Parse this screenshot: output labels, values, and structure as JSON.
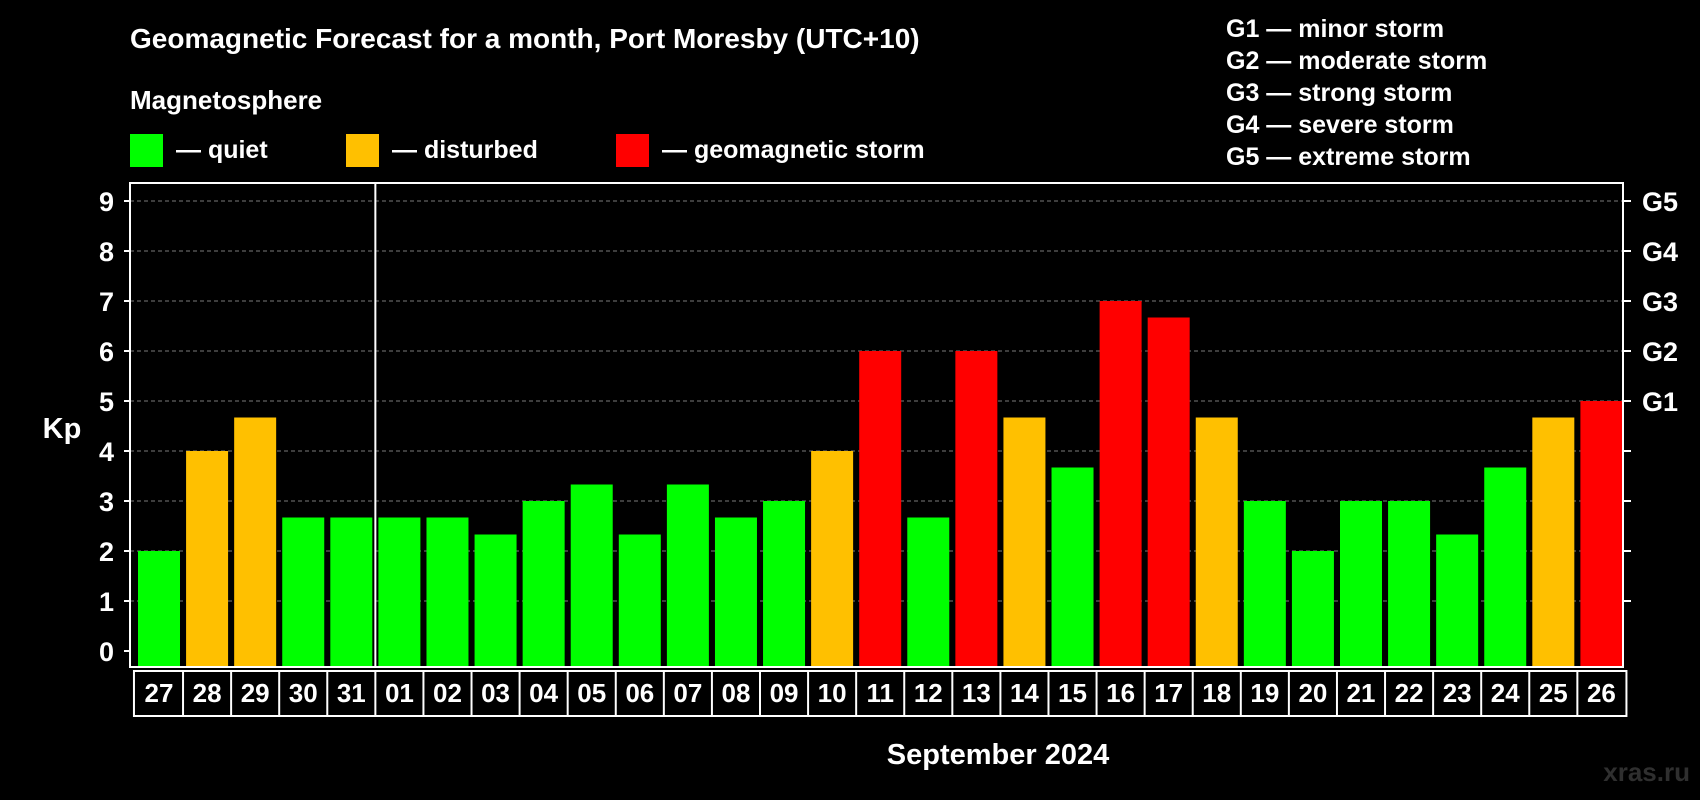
{
  "header": {
    "title": "Geomagnetic Forecast for a month, Port Moresby (UTC+10)",
    "subtitle": "Magnetosphere"
  },
  "legend": {
    "items": [
      {
        "label": "— quiet",
        "color": "#00ff00"
      },
      {
        "label": "— disturbed",
        "color": "#ffc000"
      },
      {
        "label": "— geomagnetic storm",
        "color": "#ff0000"
      }
    ]
  },
  "storm_legend": [
    "G1 — minor storm",
    "G2 — moderate storm",
    "G3 — strong storm",
    "G4 — severe storm",
    "G5 — extreme storm"
  ],
  "watermark": "xras.ru",
  "colors": {
    "quiet": "#00ff00",
    "disturbed": "#ffc000",
    "storm": "#ff0000",
    "background": "#000000",
    "axis": "#ffffff",
    "grid": "#7a7a7a"
  },
  "chart_data": {
    "type": "bar",
    "title": "Geomagnetic Forecast for a month, Port Moresby (UTC+10)",
    "xlabel": "September 2024",
    "ylabel": "Kp",
    "ylim": [
      0,
      9
    ],
    "yticks": [
      0,
      1,
      2,
      3,
      4,
      5,
      6,
      7,
      8,
      9
    ],
    "right_axis_labels": [
      {
        "kp": 5,
        "label": "G1"
      },
      {
        "kp": 6,
        "label": "G2"
      },
      {
        "kp": 7,
        "label": "G3"
      },
      {
        "kp": 8,
        "label": "G4"
      },
      {
        "kp": 9,
        "label": "G5"
      }
    ],
    "grid": "horizontal dashed",
    "month_divider_after_index": 4,
    "categories": [
      "27",
      "28",
      "29",
      "30",
      "31",
      "01",
      "02",
      "03",
      "04",
      "05",
      "06",
      "07",
      "08",
      "09",
      "10",
      "11",
      "12",
      "13",
      "14",
      "15",
      "16",
      "17",
      "18",
      "19",
      "20",
      "21",
      "22",
      "23",
      "24",
      "25",
      "26"
    ],
    "values": [
      2,
      4,
      4.67,
      2.67,
      2.67,
      2.67,
      2.67,
      2.33,
      3,
      3.33,
      2.33,
      3.33,
      2.67,
      3,
      4,
      6,
      2.67,
      6,
      4.67,
      3.67,
      7,
      6.67,
      4.67,
      3,
      2,
      3,
      3,
      2.33,
      3.67,
      4.67,
      5
    ],
    "levels": [
      "quiet",
      "disturbed",
      "disturbed",
      "quiet",
      "quiet",
      "quiet",
      "quiet",
      "quiet",
      "quiet",
      "quiet",
      "quiet",
      "quiet",
      "quiet",
      "quiet",
      "disturbed",
      "storm",
      "quiet",
      "storm",
      "disturbed",
      "quiet",
      "storm",
      "storm",
      "disturbed",
      "quiet",
      "quiet",
      "quiet",
      "quiet",
      "quiet",
      "quiet",
      "disturbed",
      "storm"
    ]
  }
}
